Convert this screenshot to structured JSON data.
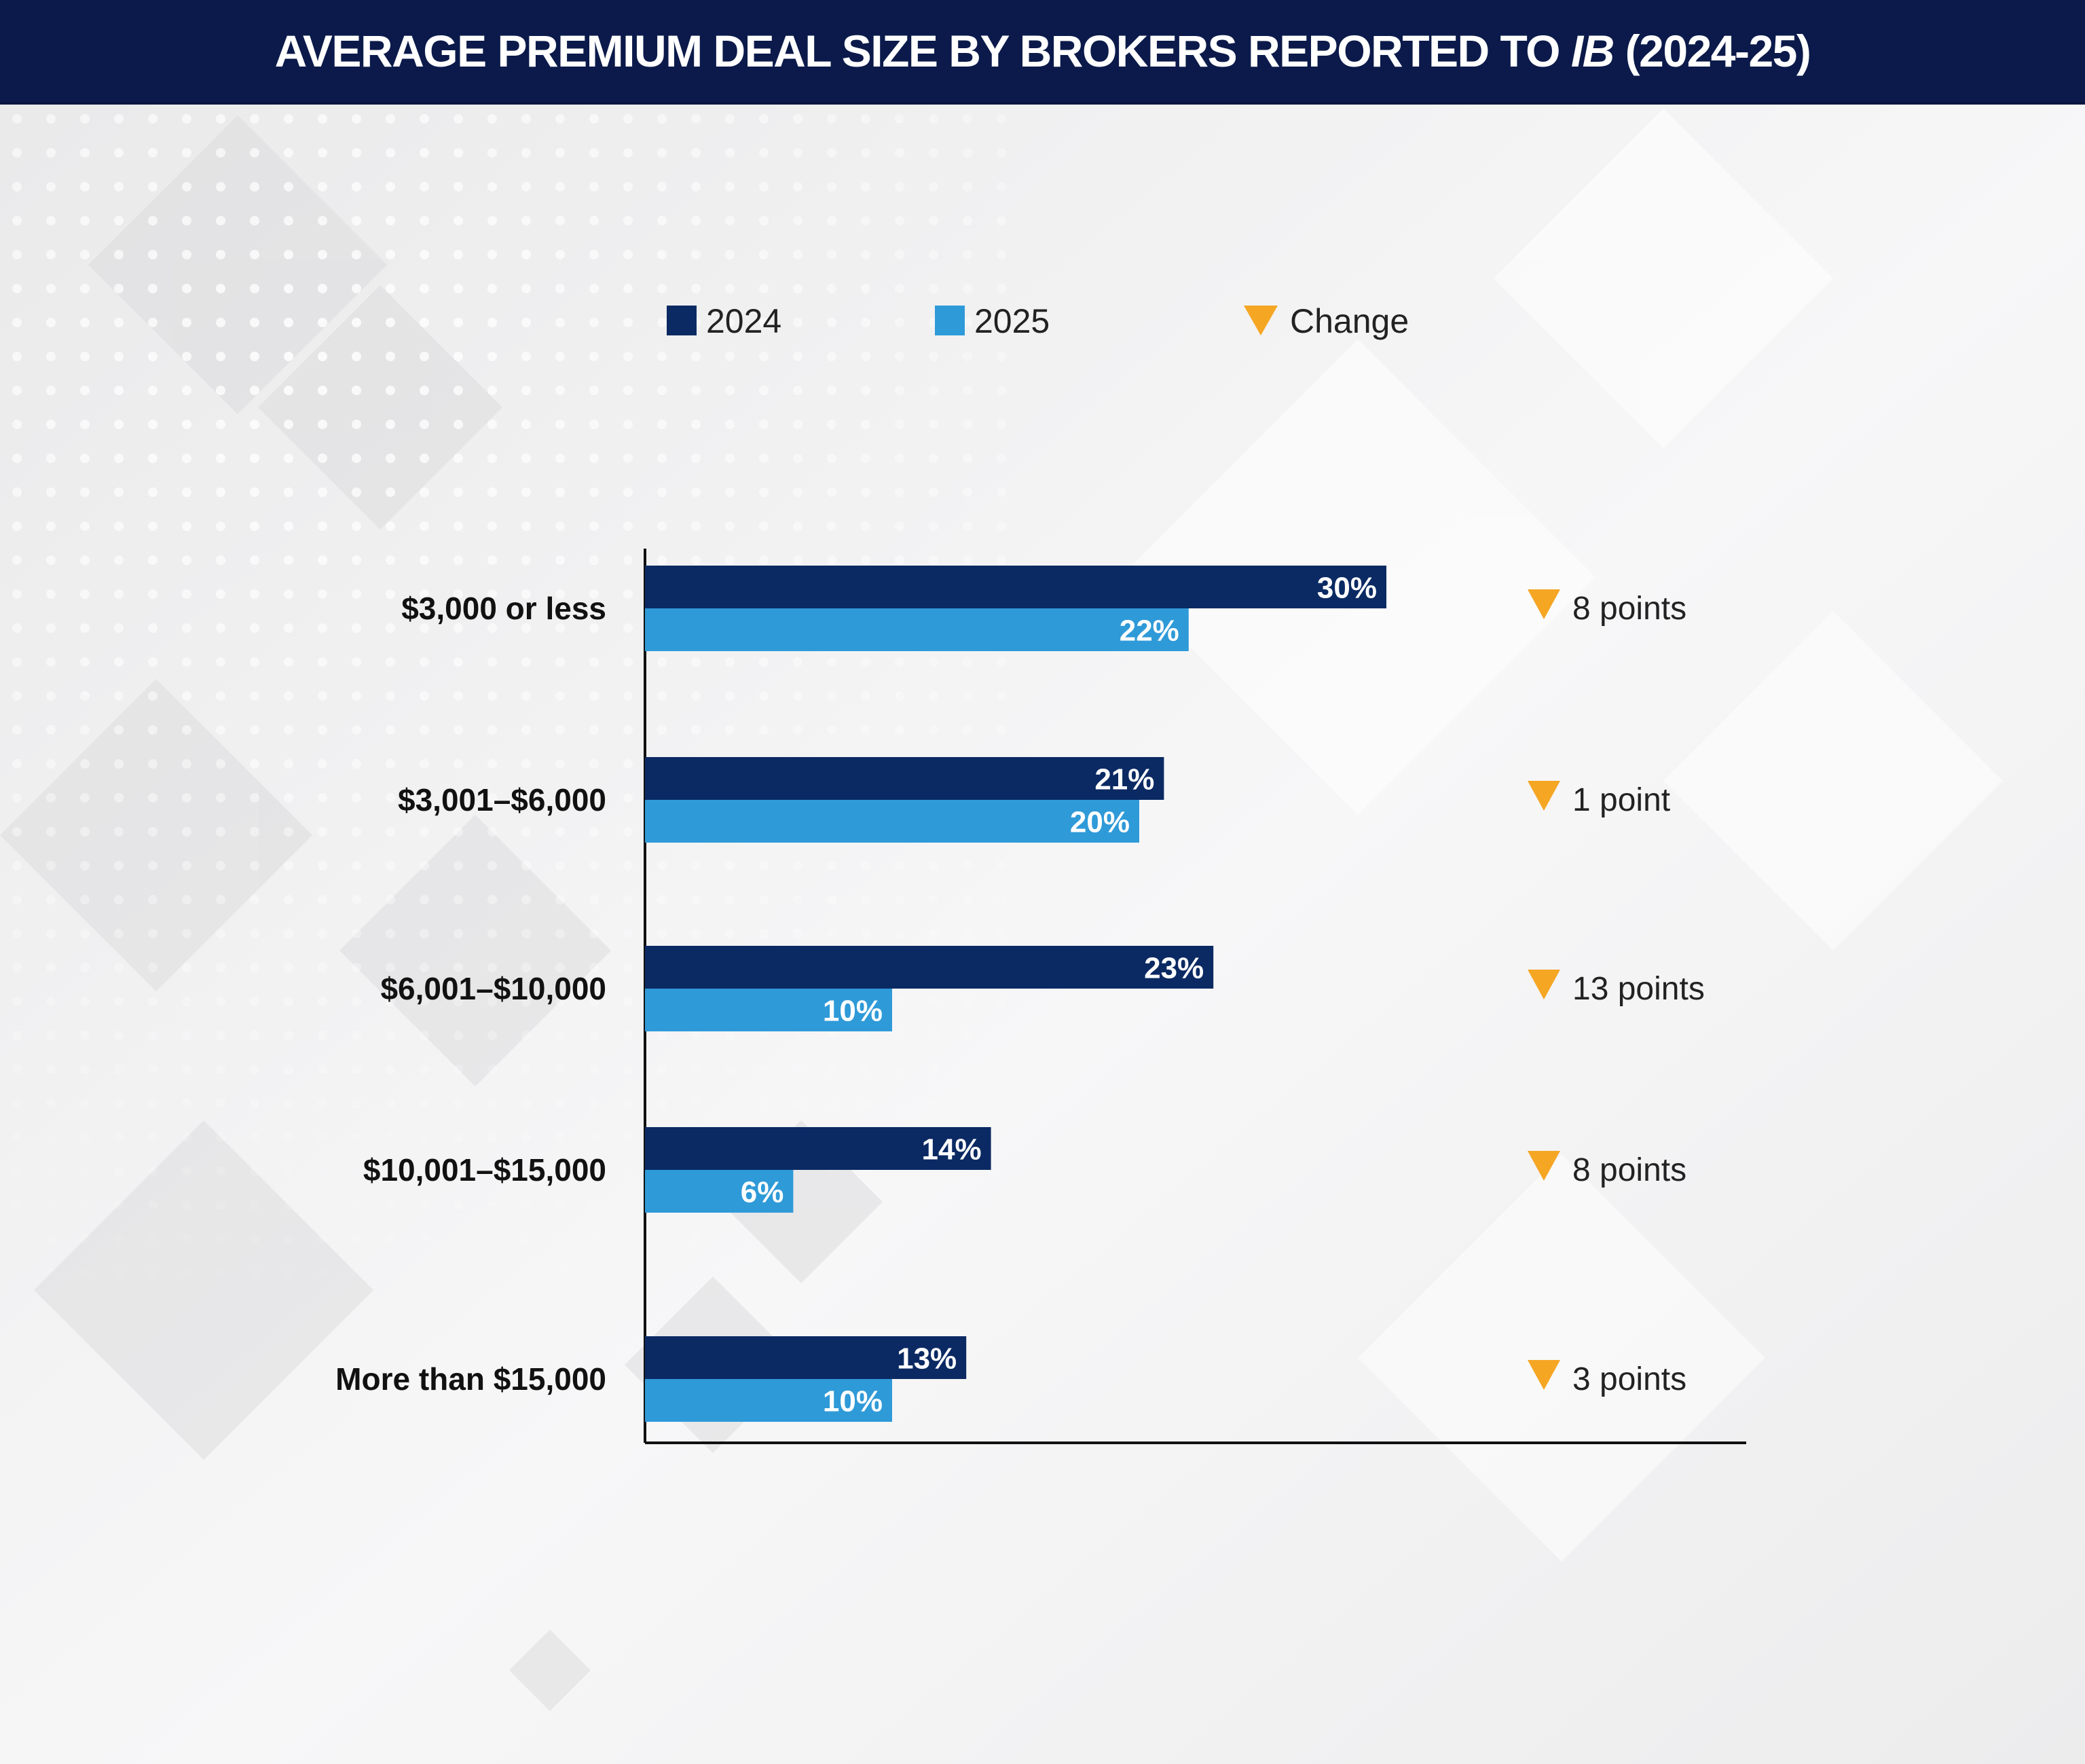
{
  "title": {
    "main": "AVERAGE PREMIUM DEAL SIZE BY BROKERS REPORTED TO ",
    "italic": "IB",
    "suffix": " (2024-25)"
  },
  "colors": {
    "title_bar": "#0b1a4a",
    "series_2024": "#0b2a63",
    "series_2025": "#2f9ad8",
    "change_marker": "#f5a623",
    "axis": "#111111"
  },
  "legend": [
    {
      "label": "2024",
      "marker": "square",
      "color": "#0b2a63"
    },
    {
      "label": "2025",
      "marker": "square",
      "color": "#2f9ad8"
    },
    {
      "label": "Change",
      "marker": "down-triangle-icon",
      "color": "#f5a623"
    }
  ],
  "chart_data": {
    "type": "bar",
    "orientation": "horizontal",
    "title": "AVERAGE PREMIUM DEAL SIZE BY BROKERS REPORTED TO IB (2024-25)",
    "categories": [
      "$3,000 or less",
      "$3,001–$6,000",
      "$6,001–$10,000",
      "$10,001–$15,000",
      "More than $15,000"
    ],
    "series": [
      {
        "name": "2024",
        "values": [
          30,
          21,
          23,
          14,
          13
        ],
        "labels": [
          "30%",
          "21%",
          "23%",
          "14%",
          "13%"
        ]
      },
      {
        "name": "2025",
        "values": [
          22,
          20,
          10,
          6,
          10
        ],
        "labels": [
          "22%",
          "20%",
          "10%",
          "6%",
          "10%"
        ]
      }
    ],
    "change": {
      "name": "Change",
      "direction": "down",
      "labels": [
        "8 points",
        "1 point",
        "13 points",
        "8 points",
        "3 points"
      ]
    },
    "unit": "%",
    "xlim": [
      0,
      30
    ],
    "grid": false,
    "legend_position": "top"
  }
}
